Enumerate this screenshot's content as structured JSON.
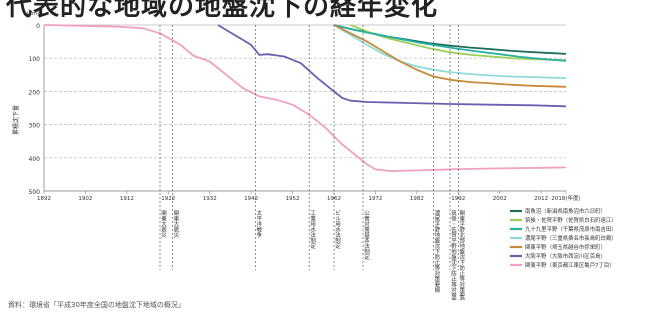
{
  "title": "代表的な地域の地盤沈下の経年変化",
  "source": "資料：環境省「平成30年度全国の地盤沈下地域の概況」",
  "chart_data": {
    "type": "line",
    "ylabel": "累積沈下量",
    "y_unit": "(cm)",
    "ylim": [
      500,
      0
    ],
    "y_ticks": [
      0,
      100,
      200,
      300,
      400,
      500
    ],
    "xlim": [
      1892,
      2018
    ],
    "x_ticks": [
      1892,
      1902,
      1912,
      1922,
      1932,
      1942,
      1952,
      1962,
      1972,
      1982,
      1992,
      2002,
      2012,
      2018
    ],
    "x_tick_labels": [
      "1892",
      "1902",
      "1912",
      "1922",
      "1932",
      "1942",
      "1952",
      "1962",
      "1972",
      "1982",
      "1992",
      "2002",
      "2012",
      "2018(年度)"
    ],
    "grid": "horizontal dashed",
    "legend_position": "bottom-right",
    "series": [
      {
        "name": "南魚沼（新潟県南魚沼市六日町）",
        "color": "#1f6e5a",
        "x": [
          1962,
          1966,
          1970,
          1975,
          1980,
          1985,
          1990,
          1995,
          2000,
          2005,
          2010,
          2015,
          2018
        ],
        "y": [
          0,
          12,
          22,
          35,
          45,
          55,
          62,
          68,
          73,
          78,
          82,
          85,
          87
        ]
      },
      {
        "name": "筑後・佐賀平野（佐賀県白石町遠江）",
        "color": "#9ccf5a",
        "x": [
          1966,
          1970,
          1975,
          1980,
          1985,
          1990,
          1995,
          2000,
          2005,
          2010,
          2018
        ],
        "y": [
          0,
          20,
          40,
          55,
          70,
          82,
          90,
          95,
          100,
          103,
          106
        ]
      },
      {
        "name": "九十九里平野（千葉県茂原市南吉田）",
        "color": "#28b0a0",
        "x": [
          1962,
          1967,
          1972,
          1977,
          1982,
          1987,
          1992,
          1997,
          2002,
          2007,
          2012,
          2018
        ],
        "y": [
          0,
          15,
          28,
          40,
          52,
          62,
          72,
          80,
          88,
          96,
          102,
          108
        ]
      },
      {
        "name": "濃尾平野（三重県桑名市長島町白鶏）",
        "color": "#8fdada",
        "x": [
          1962,
          1966,
          1970,
          1974,
          1978,
          1982,
          1986,
          1990,
          1995,
          2000,
          2005,
          2010,
          2018
        ],
        "y": [
          0,
          30,
          60,
          88,
          110,
          125,
          135,
          142,
          148,
          152,
          155,
          157,
          160
        ]
      },
      {
        "name": "関東平野（埼玉県越谷市弥栄町）",
        "color": "#c88a3a",
        "x": [
          1962,
          1966,
          1970,
          1974,
          1978,
          1982,
          1986,
          1990,
          1995,
          2000,
          2005,
          2010,
          2018
        ],
        "y": [
          0,
          25,
          50,
          80,
          110,
          135,
          155,
          165,
          172,
          176,
          180,
          183,
          186
        ]
      },
      {
        "name": "大阪平野（大阪市西淀川区百島）",
        "color": "#6b60b0",
        "x": [
          1934,
          1938,
          1940,
          1942,
          1944,
          1946,
          1950,
          1954,
          1958,
          1962,
          1964,
          1966,
          1970,
          1980,
          1990,
          2000,
          2010,
          2018
        ],
        "y": [
          0,
          30,
          45,
          60,
          90,
          88,
          95,
          115,
          160,
          200,
          220,
          228,
          232,
          235,
          238,
          240,
          242,
          245
        ]
      },
      {
        "name": "関東平野（東京都江東区亀戸7丁目）",
        "color": "#f0a0c0",
        "x": [
          1892,
          1900,
          1910,
          1916,
          1920,
          1925,
          1928,
          1932,
          1936,
          1940,
          1944,
          1948,
          1952,
          1956,
          1960,
          1964,
          1968,
          1970,
          1972,
          1976,
          1982,
          1992,
          2002,
          2012,
          2018
        ],
        "y": [
          0,
          2,
          5,
          10,
          25,
          60,
          92,
          110,
          150,
          190,
          215,
          225,
          240,
          270,
          310,
          360,
          400,
          420,
          435,
          440,
          438,
          434,
          432,
          430,
          429
        ]
      }
    ],
    "events": [
      {
        "x": 1920,
        "label": "関東大震災"
      },
      {
        "x": 1923,
        "label": "関東大震災"
      },
      {
        "x": 1943,
        "label": "太平洋戦争"
      },
      {
        "x": 1956,
        "label": "工業用水法制定"
      },
      {
        "x": 1962,
        "label": "ビル用水法制定"
      },
      {
        "x": 1969,
        "label": "公害対策基本法制定"
      },
      {
        "x": 1986,
        "label": "濃尾平野地盤沈下防止等対策要綱"
      },
      {
        "x": 1990,
        "label": "筑後・佐賀平野地盤沈下防止等対策要綱"
      },
      {
        "x": 1992,
        "label": "関東平野北部地盤沈下防止等対策要綱"
      }
    ]
  }
}
